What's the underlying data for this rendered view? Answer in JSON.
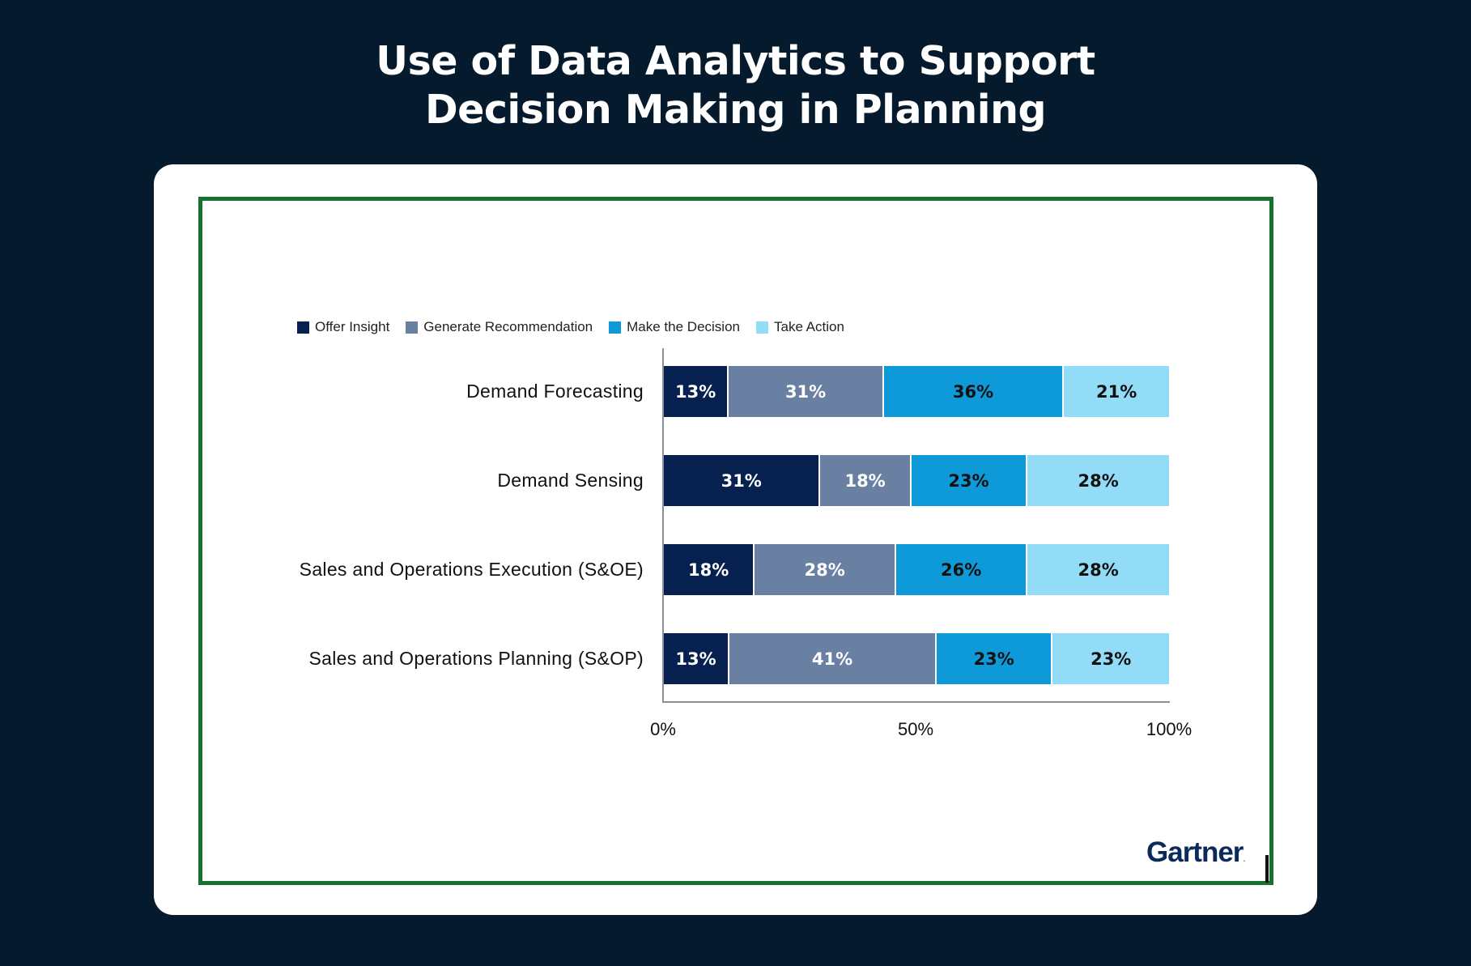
{
  "title_line1": "Use of Data Analytics to Support",
  "title_line2": "Decision Making in Planning",
  "logo": "Gartner",
  "colors": {
    "background": "#051a2c",
    "card": "#ffffff",
    "frame_border": "#16722f",
    "offer_insight": "#06204f",
    "generate_recommendation": "#6a80a3",
    "make_the_decision": "#0e9ad8",
    "take_action": "#93dcf7"
  },
  "legend": [
    {
      "label": "Offer Insight",
      "color": "#06204f"
    },
    {
      "label": "Generate Recommendation",
      "color": "#6a80a3"
    },
    {
      "label": "Make the Decision",
      "color": "#0e9ad8"
    },
    {
      "label": "Take Action",
      "color": "#93dcf7"
    }
  ],
  "x_ticks": [
    "0%",
    "50%",
    "100%"
  ],
  "chart_data": {
    "type": "bar",
    "orientation": "horizontal",
    "stacked": true,
    "title": "Use of Data Analytics to Support Decision Making in Planning",
    "xlabel": "",
    "ylabel": "",
    "xlim": [
      0,
      100
    ],
    "x_ticks": [
      "0%",
      "50%",
      "100%"
    ],
    "grid": false,
    "legend_position": "top-left",
    "categories": [
      "Demand Forecasting",
      "Demand Sensing",
      "Sales and Operations Execution (S&OE)",
      "Sales and Operations Planning (S&OP)"
    ],
    "series": [
      {
        "name": "Offer Insight",
        "values": [
          13,
          31,
          18,
          13
        ]
      },
      {
        "name": "Generate Recommendation",
        "values": [
          31,
          18,
          28,
          41
        ]
      },
      {
        "name": "Make the Decision",
        "values": [
          36,
          23,
          26,
          23
        ]
      },
      {
        "name": "Take Action",
        "values": [
          21,
          28,
          28,
          23
        ]
      }
    ],
    "value_labels": [
      [
        "13%",
        "31%",
        "36%",
        "21%"
      ],
      [
        "31%",
        "18%",
        "23%",
        "28%"
      ],
      [
        "18%",
        "28%",
        "26%",
        "28%"
      ],
      [
        "13%",
        "41%",
        "23%",
        "23%"
      ]
    ]
  }
}
